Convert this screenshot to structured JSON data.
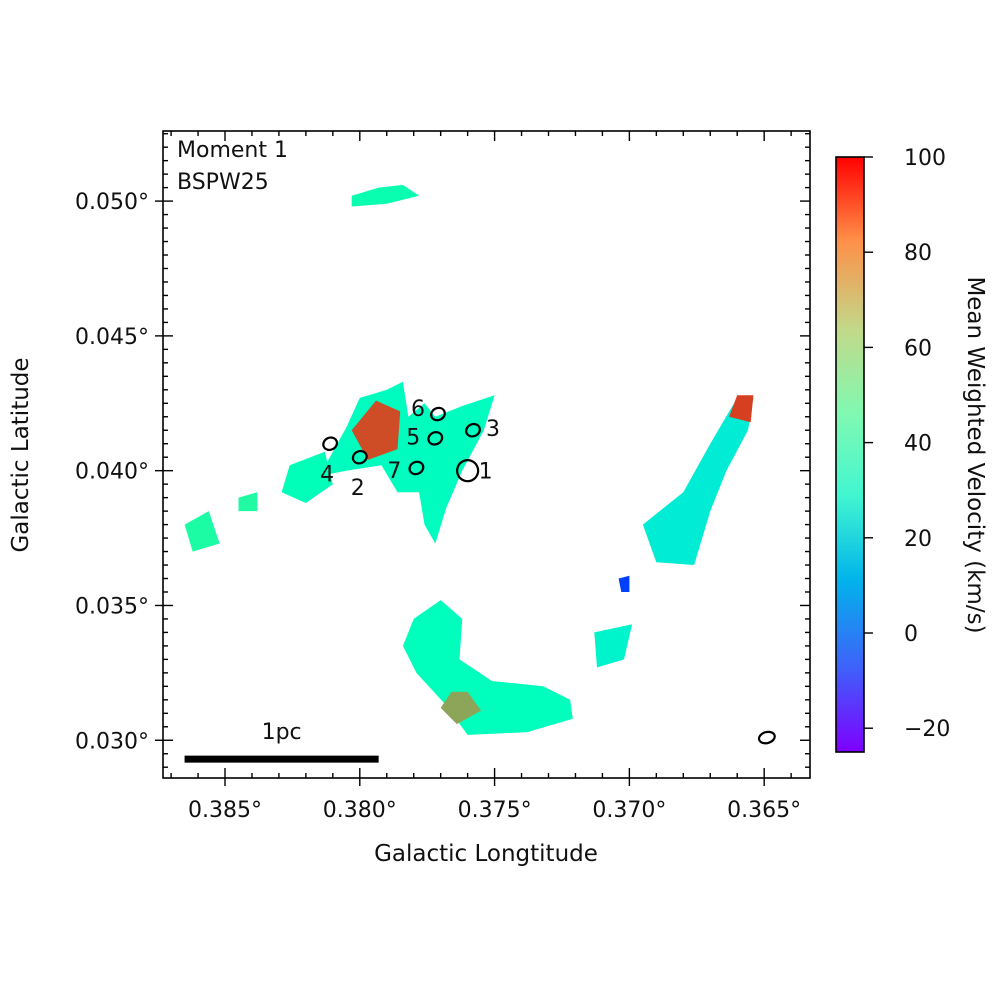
{
  "chart_data": {
    "type": "heatmap",
    "annotations": [
      "Moment 1",
      "BSPW25"
    ],
    "xlabel": "Galactic Longtitude",
    "ylabel": "Galactic Latitude",
    "xlim": [
      0.3873,
      0.3633
    ],
    "ylim": [
      0.0286,
      0.0526
    ],
    "xticks": [
      {
        "value": 0.385,
        "label": "0.385°"
      },
      {
        "value": 0.38,
        "label": "0.380°"
      },
      {
        "value": 0.375,
        "label": "0.375°"
      },
      {
        "value": 0.37,
        "label": "0.370°"
      },
      {
        "value": 0.365,
        "label": "0.365°"
      }
    ],
    "yticks": [
      {
        "value": 0.03,
        "label": "0.030°"
      },
      {
        "value": 0.035,
        "label": "0.035°"
      },
      {
        "value": 0.04,
        "label": "0.040°"
      },
      {
        "value": 0.045,
        "label": "0.045°"
      },
      {
        "value": 0.05,
        "label": "0.050°"
      }
    ],
    "colorbar": {
      "label": "Mean Weighted Velocity (km/s)",
      "range": [
        -25,
        100
      ],
      "ticks": [
        {
          "value": 100,
          "label": "100"
        },
        {
          "value": 80,
          "label": "80"
        },
        {
          "value": 60,
          "label": "60"
        },
        {
          "value": 40,
          "label": "40"
        },
        {
          "value": 20,
          "label": "20"
        },
        {
          "value": 0,
          "label": "0"
        },
        {
          "value": -20,
          "label": "−20"
        }
      ],
      "colormap": "rainbow"
    },
    "scalebar": {
      "label": "1pc",
      "l_start": 0.3865,
      "l_end": 0.3793,
      "b": 0.0293
    },
    "beam": {
      "l": 0.3649,
      "b": 0.0301
    },
    "sources": [
      {
        "id": "1",
        "label": "1",
        "l": 0.376,
        "b": 0.04
      },
      {
        "id": "2",
        "label": "2",
        "l": 0.38,
        "b": 0.0405
      },
      {
        "id": "3",
        "label": "3",
        "l": 0.3758,
        "b": 0.0415
      },
      {
        "id": "4",
        "label": "4",
        "l": 0.3811,
        "b": 0.041
      },
      {
        "id": "5",
        "label": "5",
        "l": 0.3772,
        "b": 0.0412
      },
      {
        "id": "6",
        "label": "6",
        "l": 0.3771,
        "b": 0.0421
      },
      {
        "id": "7",
        "label": "7",
        "l": 0.3779,
        "b": 0.0401
      }
    ],
    "emission_regions": [
      {
        "name": "north-streak",
        "velocity": 40,
        "points": [
          [
            0.3803,
            0.0502
          ],
          [
            0.3793,
            0.0505
          ],
          [
            0.3784,
            0.0506
          ],
          [
            0.3778,
            0.0502
          ],
          [
            0.379,
            0.0499
          ],
          [
            0.3803,
            0.0498
          ]
        ]
      },
      {
        "name": "central-complex",
        "velocity": 32,
        "points": [
          [
            0.3815,
            0.0398
          ],
          [
            0.3805,
            0.0416
          ],
          [
            0.38,
            0.0427
          ],
          [
            0.379,
            0.043
          ],
          [
            0.3784,
            0.0433
          ],
          [
            0.3782,
            0.042
          ],
          [
            0.3776,
            0.0425
          ],
          [
            0.3772,
            0.042
          ],
          [
            0.3762,
            0.0424
          ],
          [
            0.375,
            0.0428
          ],
          [
            0.3754,
            0.0415
          ],
          [
            0.3762,
            0.04
          ],
          [
            0.3768,
            0.0386
          ],
          [
            0.3772,
            0.0373
          ],
          [
            0.3776,
            0.038
          ],
          [
            0.3778,
            0.0392
          ],
          [
            0.3786,
            0.0392
          ],
          [
            0.3792,
            0.0402
          ],
          [
            0.3805,
            0.04
          ]
        ]
      },
      {
        "name": "red-core",
        "velocity": 88,
        "points": [
          [
            0.3803,
            0.0415
          ],
          [
            0.3794,
            0.0426
          ],
          [
            0.3785,
            0.0422
          ],
          [
            0.3786,
            0.0408
          ],
          [
            0.3797,
            0.0404
          ]
        ]
      },
      {
        "name": "west-lobe",
        "velocity": 36,
        "points": [
          [
            0.3826,
            0.0402
          ],
          [
            0.3813,
            0.0407
          ],
          [
            0.381,
            0.0395
          ],
          [
            0.382,
            0.0388
          ],
          [
            0.3829,
            0.0392
          ]
        ]
      },
      {
        "name": "south-complex",
        "velocity": 34,
        "points": [
          [
            0.378,
            0.0345
          ],
          [
            0.377,
            0.0352
          ],
          [
            0.3762,
            0.0345
          ],
          [
            0.3763,
            0.033
          ],
          [
            0.3751,
            0.0322
          ],
          [
            0.3732,
            0.032
          ],
          [
            0.3722,
            0.0315
          ],
          [
            0.3721,
            0.0308
          ],
          [
            0.3738,
            0.0303
          ],
          [
            0.376,
            0.0302
          ],
          [
            0.3768,
            0.0313
          ],
          [
            0.3779,
            0.0325
          ],
          [
            0.3784,
            0.0335
          ]
        ]
      },
      {
        "name": "south-orange",
        "velocity": 72,
        "points": [
          [
            0.3766,
            0.0318
          ],
          [
            0.376,
            0.0318
          ],
          [
            0.3755,
            0.0311
          ],
          [
            0.3764,
            0.0306
          ],
          [
            0.377,
            0.0312
          ]
        ]
      },
      {
        "name": "east-filament",
        "velocity": 22,
        "points": [
          [
            0.366,
            0.0427
          ],
          [
            0.3654,
            0.0427
          ],
          [
            0.3656,
            0.0415
          ],
          [
            0.3664,
            0.04
          ],
          [
            0.367,
            0.0385
          ],
          [
            0.3676,
            0.0365
          ],
          [
            0.369,
            0.0366
          ],
          [
            0.3695,
            0.038
          ],
          [
            0.368,
            0.0392
          ],
          [
            0.367,
            0.041
          ]
        ]
      },
      {
        "name": "east-red-tip",
        "velocity": 90,
        "points": [
          [
            0.366,
            0.0428
          ],
          [
            0.3654,
            0.0428
          ],
          [
            0.3655,
            0.0418
          ],
          [
            0.3663,
            0.042
          ]
        ]
      },
      {
        "name": "small-east",
        "velocity": 26,
        "points": [
          [
            0.3713,
            0.034
          ],
          [
            0.3699,
            0.0343
          ],
          [
            0.3702,
            0.033
          ],
          [
            0.3712,
            0.0327
          ]
        ]
      },
      {
        "name": "small-west",
        "velocity": 44,
        "points": [
          [
            0.3865,
            0.038
          ],
          [
            0.3856,
            0.0385
          ],
          [
            0.3852,
            0.0373
          ],
          [
            0.3862,
            0.037
          ]
        ]
      },
      {
        "name": "speck-a",
        "velocity": 45,
        "points": [
          [
            0.3845,
            0.039
          ],
          [
            0.3838,
            0.0392
          ],
          [
            0.3838,
            0.0385
          ],
          [
            0.3845,
            0.0385
          ]
        ]
      },
      {
        "name": "speck-b",
        "velocity": -15,
        "points": [
          [
            0.3704,
            0.036
          ],
          [
            0.37,
            0.0361
          ],
          [
            0.37,
            0.0355
          ],
          [
            0.3703,
            0.0355
          ]
        ]
      }
    ]
  }
}
